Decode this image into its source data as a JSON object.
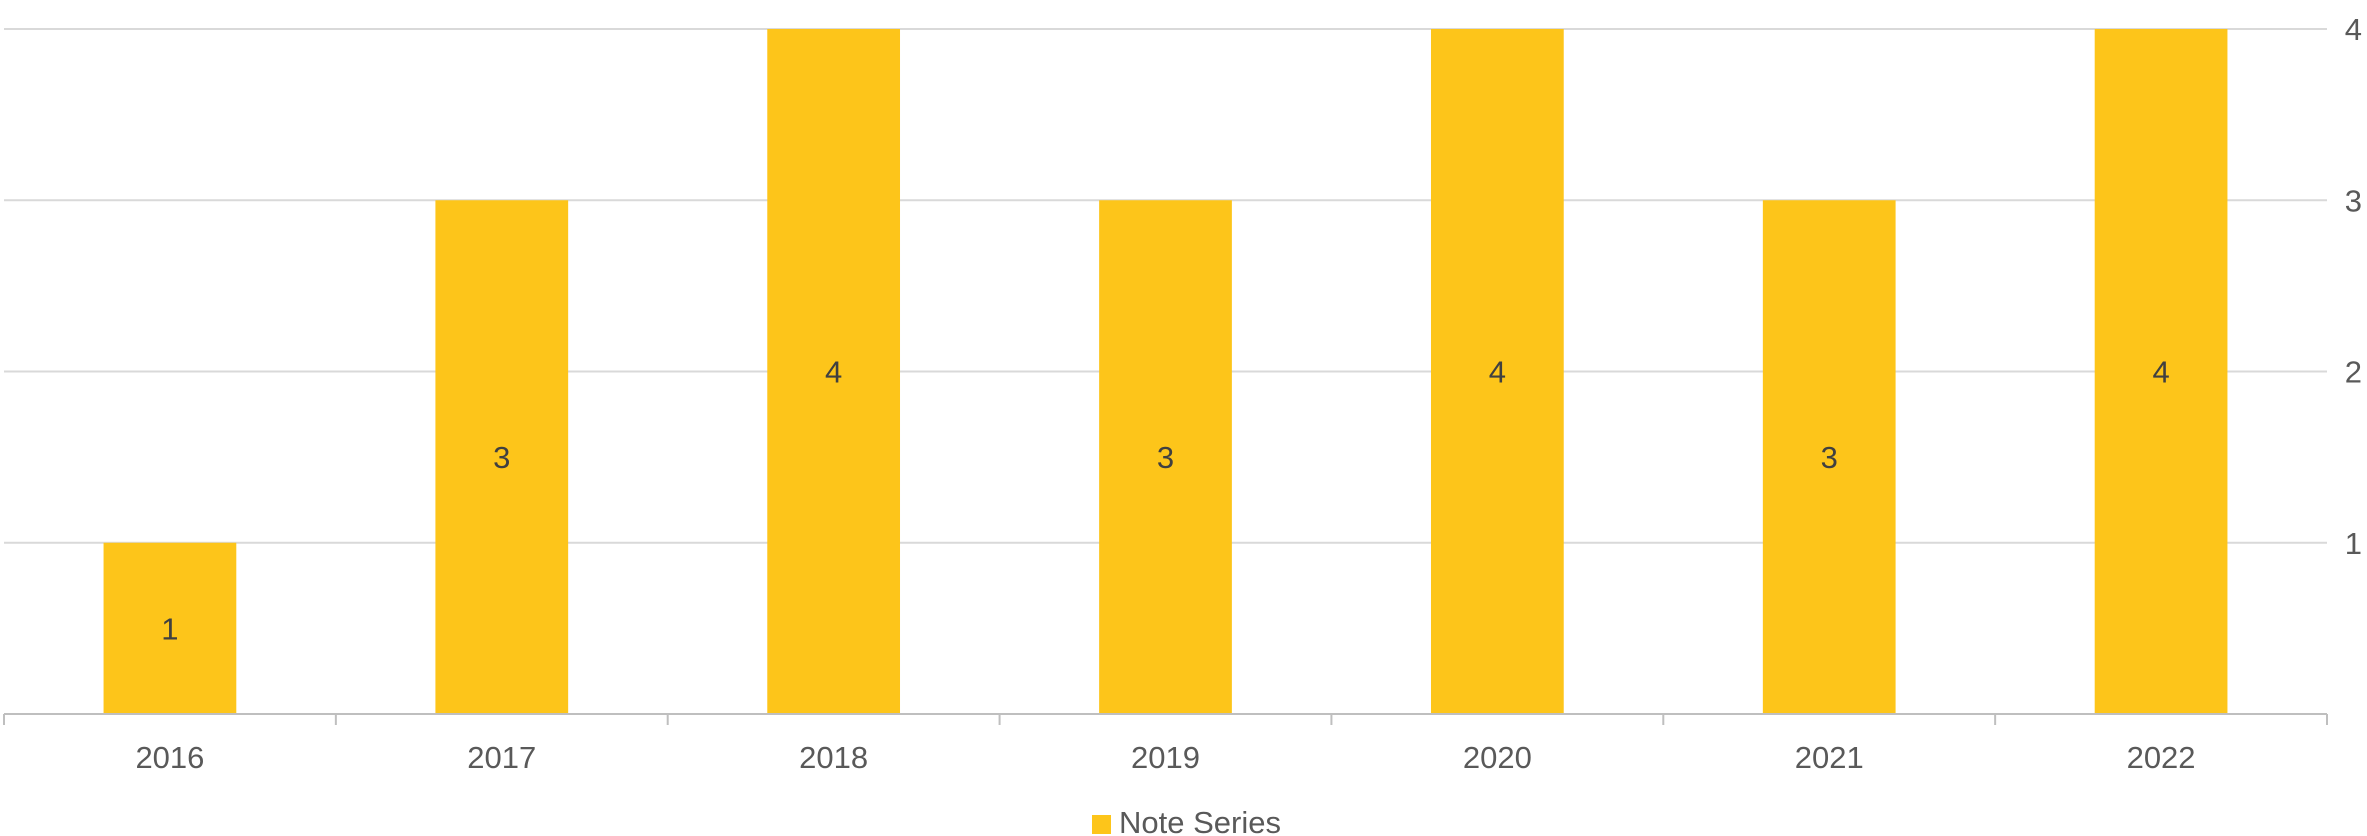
{
  "chart_data": {
    "type": "bar",
    "categories": [
      "2016",
      "2017",
      "2018",
      "2019",
      "2020",
      "2021",
      "2022"
    ],
    "series": [
      {
        "name": "Note Series",
        "values": [
          1,
          3,
          4,
          3,
          4,
          3,
          4
        ],
        "color": "#FDC51A"
      }
    ],
    "data_labels": [
      "1",
      "3",
      "4",
      "3",
      "4",
      "3",
      "4"
    ],
    "y_axis": {
      "position": "right",
      "ylim": [
        0,
        4
      ],
      "ticks": [
        1,
        2,
        3,
        4
      ]
    },
    "grid": true,
    "legend": {
      "position": "bottom",
      "entries": [
        "Note Series"
      ]
    },
    "title": "",
    "xlabel": "",
    "ylabel": ""
  },
  "colors": {
    "bar": "#FDC51A",
    "gridline": "#D9D9D9",
    "axis": "#BFBFBF",
    "text": "#595959"
  }
}
